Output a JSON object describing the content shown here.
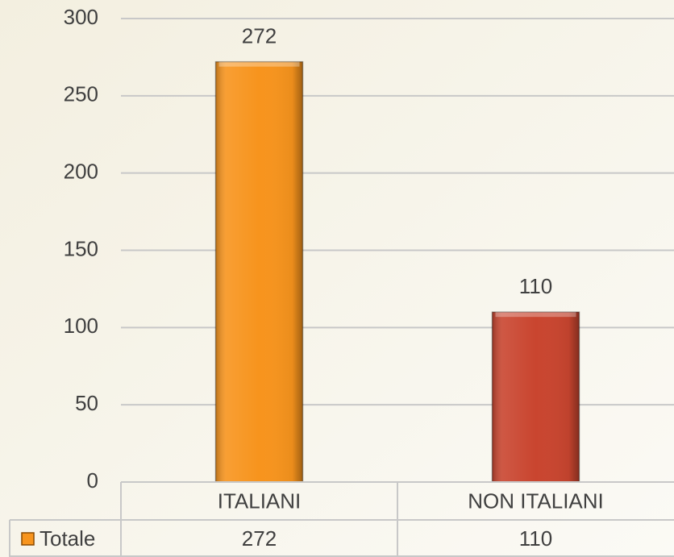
{
  "chart_data": {
    "type": "bar",
    "categories": [
      "ITALIANI",
      "NON ITALIANI"
    ],
    "series": [
      {
        "name": "Totale",
        "colors": [
          "#f7941d",
          "#c9452f"
        ],
        "values": [
          272,
          110
        ]
      }
    ],
    "ylim": [
      0,
      300
    ],
    "yticks": [
      0,
      50,
      100,
      150,
      200,
      250,
      300
    ],
    "grid": true,
    "data_table": true
  }
}
